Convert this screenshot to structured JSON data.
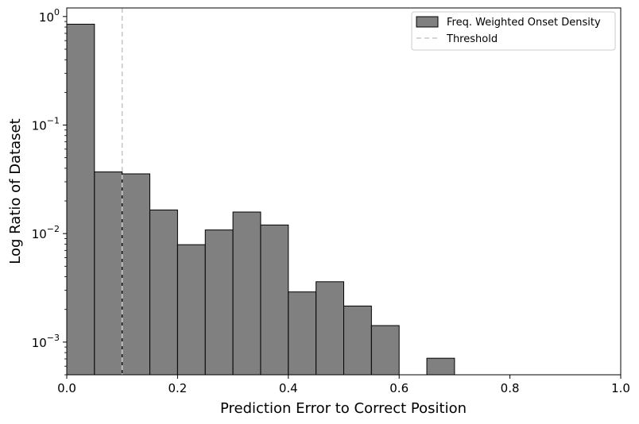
{
  "chart_data": {
    "type": "bar",
    "xlabel": "Prediction Error to Correct Position",
    "ylabel": "Log Ratio of Dataset",
    "xlim": [
      0,
      1
    ],
    "ylim": [
      0.0005,
      1.2
    ],
    "y_scale": "log",
    "x_ticks": [
      {
        "value": 0.0,
        "label": "0.0"
      },
      {
        "value": 0.2,
        "label": "0.2"
      },
      {
        "value": 0.4,
        "label": "0.4"
      },
      {
        "value": 0.6,
        "label": "0.6"
      },
      {
        "value": 0.8,
        "label": "0.8"
      },
      {
        "value": 1.0,
        "label": "1.0"
      }
    ],
    "y_ticks": [
      {
        "value": 1,
        "base": "10",
        "exp": "0"
      },
      {
        "value": 0.1,
        "base": "10",
        "exp": "−1"
      },
      {
        "value": 0.01,
        "base": "10",
        "exp": "−2"
      },
      {
        "value": 0.001,
        "base": "10",
        "exp": "−3"
      }
    ],
    "bin_width": 0.05,
    "bins": [
      {
        "x0": 0.0,
        "x1": 0.05,
        "value": 0.85
      },
      {
        "x0": 0.05,
        "x1": 0.1,
        "value": 0.037
      },
      {
        "x0": 0.1,
        "x1": 0.15,
        "value": 0.0355
      },
      {
        "x0": 0.15,
        "x1": 0.2,
        "value": 0.0165
      },
      {
        "x0": 0.2,
        "x1": 0.25,
        "value": 0.0079
      },
      {
        "x0": 0.25,
        "x1": 0.3,
        "value": 0.0108
      },
      {
        "x0": 0.3,
        "x1": 0.35,
        "value": 0.0158
      },
      {
        "x0": 0.35,
        "x1": 0.4,
        "value": 0.012
      },
      {
        "x0": 0.4,
        "x1": 0.45,
        "value": 0.0029
      },
      {
        "x0": 0.45,
        "x1": 0.5,
        "value": 0.0036
      },
      {
        "x0": 0.5,
        "x1": 0.55,
        "value": 0.00215
      },
      {
        "x0": 0.55,
        "x1": 0.6,
        "value": 0.00142
      },
      {
        "x0": 0.65,
        "x1": 0.7,
        "value": 0.00071
      }
    ],
    "threshold": {
      "name": "Threshold",
      "value": 0.1,
      "color": "#c8c8c8"
    },
    "series": [
      {
        "name": "Freq. Weighted Onset Density",
        "color": "#808080",
        "edge_color": "#000000"
      }
    ],
    "legend": {
      "placement": "top-right",
      "entries": [
        "Freq. Weighted Onset Density",
        "Threshold"
      ]
    },
    "grid": false
  }
}
